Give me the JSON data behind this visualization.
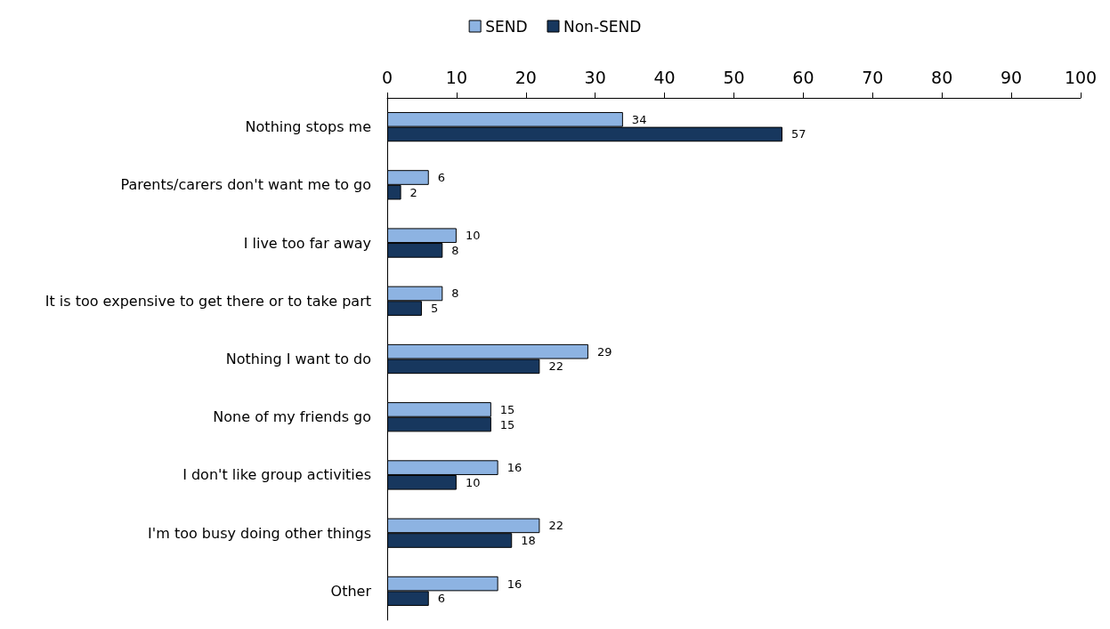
{
  "chart_data": {
    "type": "bar",
    "orientation": "horizontal",
    "categories": [
      "Nothing stops me",
      "Parents/carers don't want me to go",
      "I live too far away",
      "It is too expensive to get there or to take part",
      "Nothing I want to do",
      "None of my friends go",
      "I don't like group activities",
      "I'm too busy doing other things",
      "Other"
    ],
    "series": [
      {
        "name": "SEND",
        "color": "#8db3e2",
        "values": [
          34,
          6,
          10,
          8,
          29,
          15,
          16,
          22,
          16
        ]
      },
      {
        "name": "Non-SEND",
        "color": "#17375e",
        "values": [
          57,
          2,
          8,
          5,
          22,
          15,
          10,
          18,
          6
        ]
      }
    ],
    "xlim": [
      0,
      100
    ],
    "xticks": [
      0,
      10,
      20,
      30,
      40,
      50,
      60,
      70,
      80,
      90,
      100
    ],
    "data_labels": true,
    "legend": "top",
    "grid": false
  }
}
